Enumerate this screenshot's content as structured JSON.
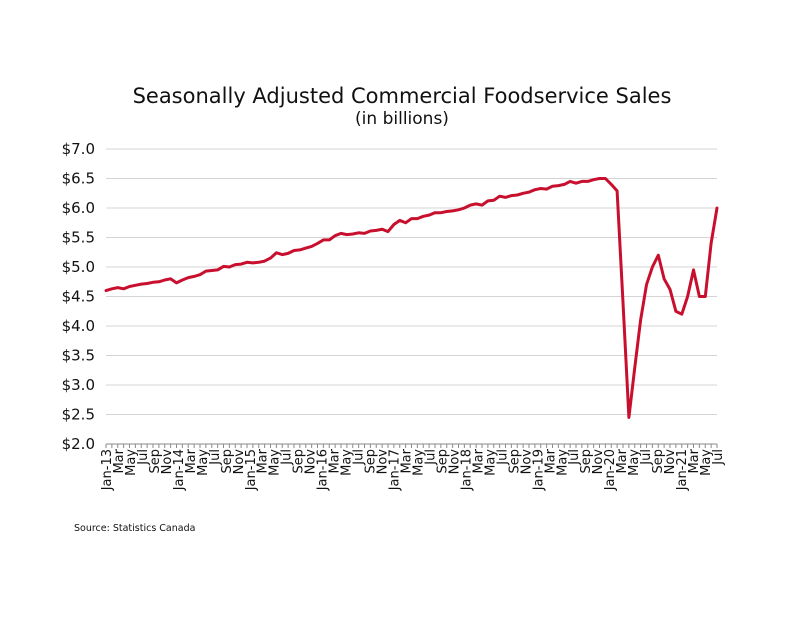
{
  "chart_data": {
    "type": "line",
    "title": "Seasonally Adjusted Commercial Foodservice Sales",
    "subtitle": "(in billions)",
    "source": "Source: Statistics Canada",
    "line_color": "#c8102e",
    "grid": true,
    "ylim": [
      2.0,
      7.0
    ],
    "ytick_values": [
      2.0,
      2.5,
      3.0,
      3.5,
      4.0,
      4.5,
      5.0,
      5.5,
      6.0,
      6.5,
      7.0
    ],
    "ytick_labels": [
      "$2.0",
      "$2.5",
      "$3.0",
      "$3.5",
      "$4.0",
      "$4.5",
      "$5.0",
      "$5.5",
      "$6.0",
      "$6.5",
      "$7.0"
    ],
    "xtick_labels": [
      "Jan-13",
      "Mar",
      "May",
      "Jul",
      "Sep",
      "Nov",
      "Jan-14",
      "Mar",
      "May",
      "Jul",
      "Sep",
      "Nov",
      "Jan-15",
      "Mar",
      "May",
      "Jul",
      "Sep",
      "Nov",
      "Jan-16",
      "Mar",
      "May",
      "Jul",
      "Sep",
      "Nov",
      "Jan-17",
      "Mar",
      "May",
      "Jul",
      "Sep",
      "Nov",
      "Jan-18",
      "Mar",
      "May",
      "Jul",
      "Sep",
      "Nov",
      "Jan-19",
      "Mar",
      "May",
      "Jul",
      "Sep",
      "Nov",
      "Jan-20",
      "Mar",
      "May",
      "Jul",
      "Sep",
      "Nov",
      "Jan-21",
      "Mar",
      "May",
      "Jul"
    ],
    "series": [
      {
        "values": [
          4.6,
          4.63,
          4.65,
          4.63,
          4.67,
          4.69,
          4.71,
          4.72,
          4.74,
          4.75,
          4.78,
          4.8,
          4.73,
          4.78,
          4.82,
          4.84,
          4.87,
          4.93,
          4.94,
          4.95,
          5.01,
          5.0,
          5.04,
          5.05,
          5.08,
          5.07,
          5.08,
          5.1,
          5.15,
          5.24,
          5.21,
          5.23,
          5.28,
          5.29,
          5.32,
          5.35,
          5.4,
          5.46,
          5.46,
          5.53,
          5.57,
          5.55,
          5.56,
          5.58,
          5.57,
          5.61,
          5.62,
          5.64,
          5.6,
          5.72,
          5.79,
          5.75,
          5.82,
          5.82,
          5.86,
          5.88,
          5.92,
          5.92,
          5.94,
          5.95,
          5.97,
          6.0,
          6.05,
          6.07,
          6.05,
          6.12,
          6.13,
          6.2,
          6.18,
          6.21,
          6.22,
          6.25,
          6.27,
          6.31,
          6.33,
          6.32,
          6.37,
          6.38,
          6.4,
          6.45,
          6.42,
          6.45,
          6.45,
          6.48,
          6.5,
          6.5,
          6.4,
          6.29,
          4.4,
          2.45,
          3.3,
          4.1,
          4.7,
          5.0,
          5.2,
          4.8,
          4.62,
          4.25,
          4.2,
          4.5,
          4.95,
          4.5,
          4.5,
          5.4,
          6.0
        ]
      }
    ]
  }
}
